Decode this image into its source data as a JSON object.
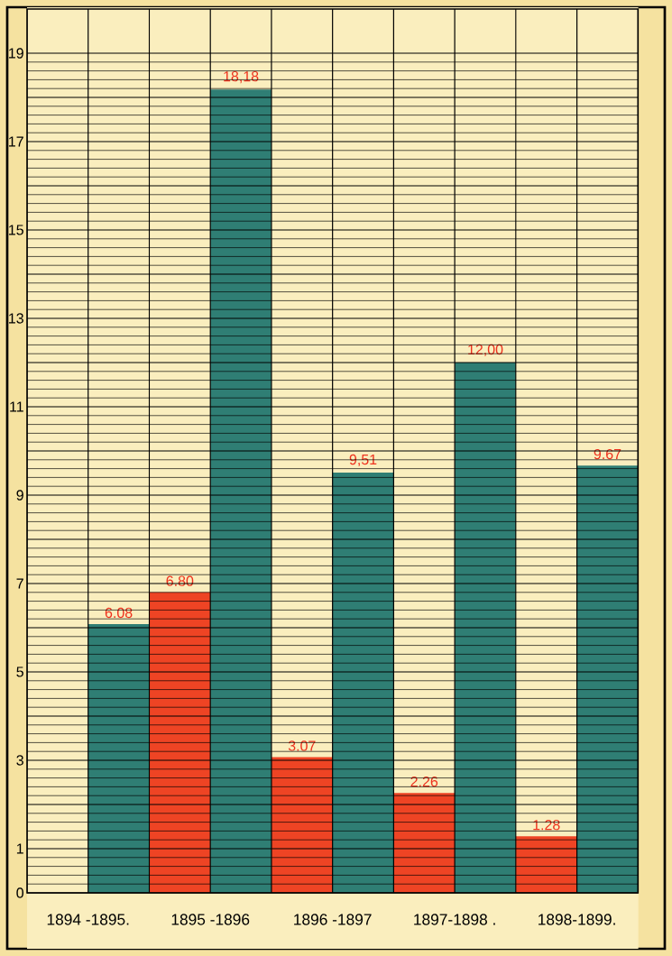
{
  "chart_data": {
    "type": "bar",
    "categories": [
      "1894 -1895.",
      "1895 -1896",
      "1896 -1897",
      "1897-1898 .",
      "1898-1899."
    ],
    "series": [
      {
        "color": "#ee4424",
        "values": [
          null,
          6.8,
          3.07,
          2.26,
          1.28
        ],
        "value_labels": [
          null,
          "6.80",
          "3.07",
          "2.26",
          "1.28"
        ]
      },
      {
        "color": "#2f7e74",
        "values": [
          6.08,
          18.18,
          9.51,
          12.0,
          9.67
        ],
        "value_labels": [
          "6.08",
          "18,18",
          "9,51",
          "12,00",
          "9.67"
        ]
      }
    ],
    "ylim": [
      0,
      20
    ],
    "yticks": [
      0,
      1,
      {
        "value": 2,
        "label": null
      },
      3,
      {
        "value": 4,
        "label": null
      },
      5,
      {
        "value": 6,
        "label": null
      },
      7,
      {
        "value": 8,
        "label": null
      },
      9,
      {
        "value": 10,
        "label": null
      },
      11,
      {
        "value": 12,
        "label": null
      },
      13,
      {
        "value": 14,
        "label": null
      },
      15,
      {
        "value": 16,
        "label": null
      },
      17,
      {
        "value": 18,
        "label": null
      },
      19
    ],
    "grid": true
  }
}
